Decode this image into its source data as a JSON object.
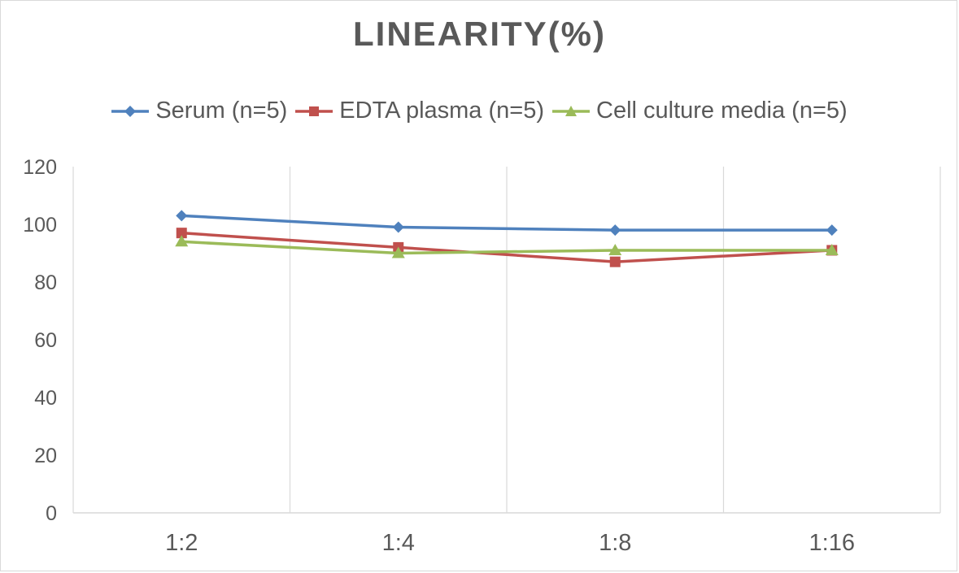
{
  "chart_data": {
    "type": "line",
    "title": "LINEARITY(%)",
    "xlabel": "",
    "ylabel": "",
    "categories": [
      "1:2",
      "1:4",
      "1:8",
      "1:16"
    ],
    "ylim": [
      0,
      120
    ],
    "yticks": [
      0,
      20,
      40,
      60,
      80,
      100,
      120
    ],
    "grid": "vertical",
    "legend_position": "top",
    "series": [
      {
        "name": "Serum (n=5)",
        "values": [
          103,
          99,
          98,
          98
        ],
        "color": "#4F81BD",
        "marker": "diamond"
      },
      {
        "name": "EDTA plasma (n=5)",
        "values": [
          97,
          92,
          87,
          91
        ],
        "color": "#C0504D",
        "marker": "square"
      },
      {
        "name": "Cell culture media (n=5)",
        "values": [
          94,
          90,
          91,
          91
        ],
        "color": "#9BBB59",
        "marker": "triangle"
      }
    ]
  }
}
